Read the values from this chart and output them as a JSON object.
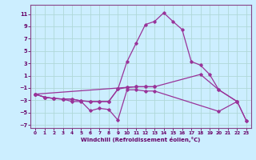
{
  "title": "",
  "xlabel": "Windchill (Refroidissement éolien,°C)",
  "bg_color": "#cceeff",
  "grid_color": "#aadddd",
  "line_color": "#993399",
  "xlim": [
    -0.5,
    23.5
  ],
  "ylim": [
    -7.5,
    12.5
  ],
  "xticks": [
    0,
    1,
    2,
    3,
    4,
    5,
    6,
    7,
    8,
    9,
    10,
    11,
    12,
    13,
    14,
    15,
    16,
    17,
    18,
    19,
    20,
    21,
    22,
    23
  ],
  "yticks": [
    -7,
    -5,
    -3,
    -1,
    1,
    3,
    5,
    7,
    9,
    11
  ],
  "series": [
    {
      "x": [
        0,
        1,
        2,
        3,
        4,
        5,
        6,
        7,
        8,
        9,
        10,
        11,
        12,
        13,
        20,
        22,
        23
      ],
      "y": [
        -2.0,
        -2.5,
        -2.7,
        -2.8,
        -3.2,
        -3.2,
        -4.7,
        -4.3,
        -4.5,
        -6.2,
        -1.3,
        -1.3,
        -1.5,
        -1.5,
        -4.8,
        -3.2,
        -6.3
      ]
    },
    {
      "x": [
        0,
        1,
        2,
        3,
        4,
        5,
        6,
        7,
        8,
        9,
        10,
        11,
        12,
        13,
        14,
        15,
        16,
        17,
        18,
        19,
        20,
        22,
        23
      ],
      "y": [
        -2.0,
        -2.5,
        -2.7,
        -2.8,
        -2.8,
        -3.1,
        -3.2,
        -3.2,
        -3.2,
        -1.2,
        3.3,
        6.3,
        9.3,
        9.8,
        11.2,
        9.8,
        8.5,
        3.3,
        2.7,
        1.2,
        -1.3,
        -3.2,
        -6.3
      ]
    },
    {
      "x": [
        0,
        1,
        2,
        3,
        4,
        5,
        6,
        7,
        8,
        9,
        10,
        11,
        12,
        13
      ],
      "y": [
        -2.0,
        -2.5,
        -2.7,
        -2.8,
        -2.8,
        -3.1,
        -3.2,
        -3.2,
        -3.2,
        -1.2,
        -0.9,
        -0.8,
        -0.8,
        -0.8
      ]
    },
    {
      "x": [
        0,
        10,
        11,
        12,
        13,
        18,
        20,
        22
      ],
      "y": [
        -2.0,
        -0.9,
        -0.8,
        -0.8,
        -0.8,
        1.2,
        -1.3,
        -3.2
      ]
    }
  ]
}
